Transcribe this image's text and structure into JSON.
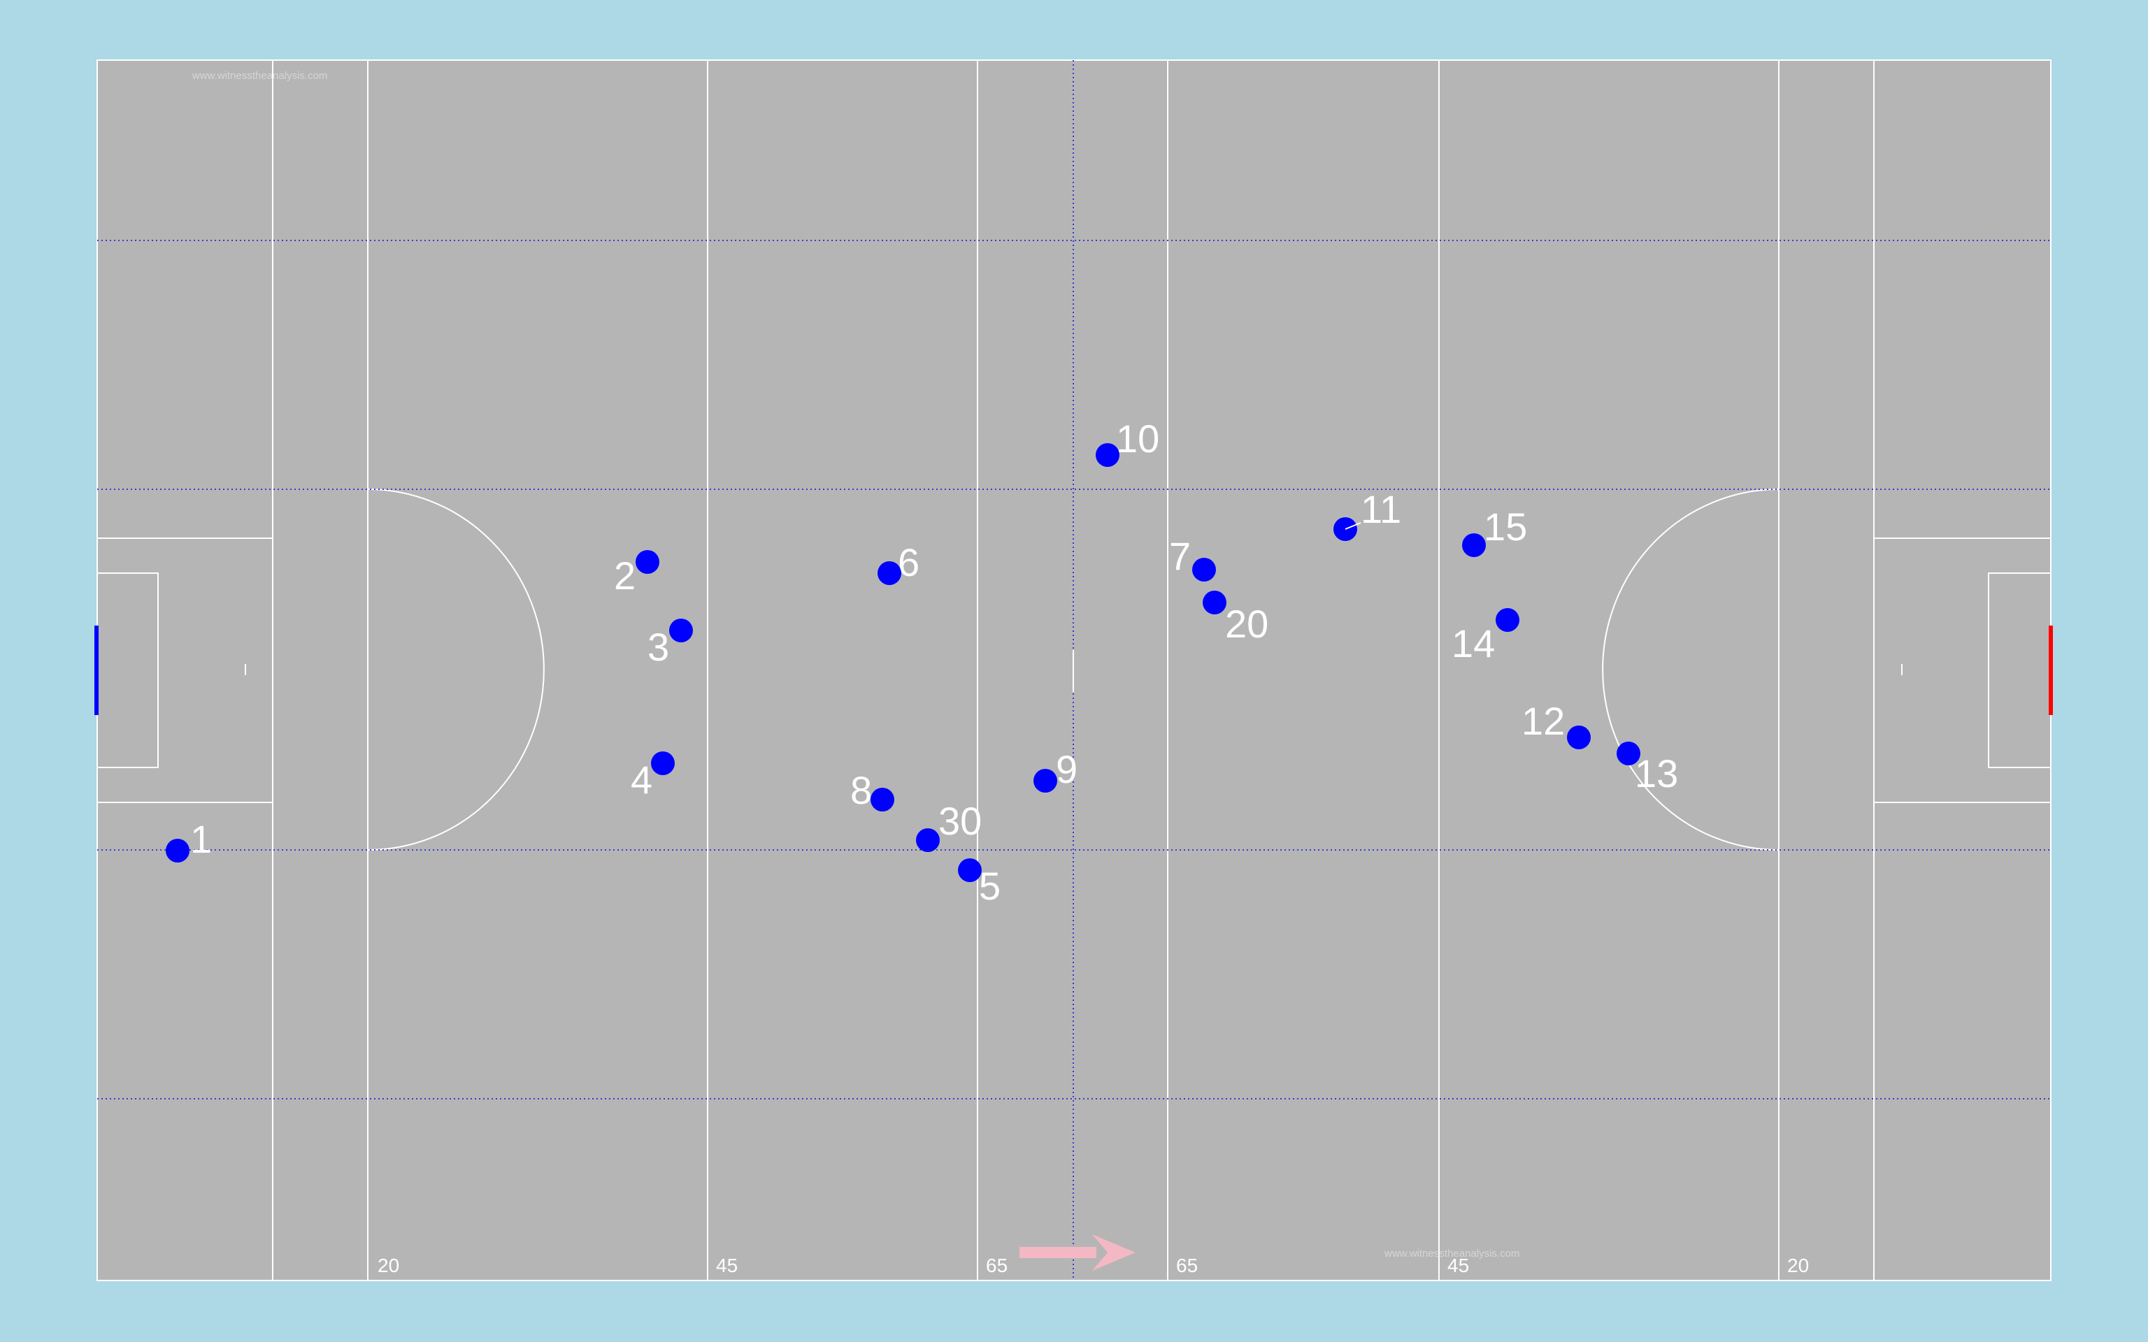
{
  "watermarks": [
    "www.witnesstheanalysis.com",
    "www.witnesstheanalysis.com"
  ],
  "yard_labels": [
    "20",
    "45",
    "65",
    "65",
    "45",
    "20"
  ],
  "colors": {
    "background": "#add8e6",
    "pitch": "#b5b5b5",
    "lines": "#ffffff",
    "dotted_lines": "#3b3bcc",
    "players": "#0000ff",
    "left_goal": "#0000ff",
    "right_goal": "#ff0000",
    "direction_arrow": "#f4b8c4"
  },
  "direction_arrow": {
    "icon": "arrow-right-icon"
  },
  "players": [
    {
      "number": "1"
    },
    {
      "number": "2"
    },
    {
      "number": "3"
    },
    {
      "number": "4"
    },
    {
      "number": "5"
    },
    {
      "number": "6"
    },
    {
      "number": "7"
    },
    {
      "number": "8"
    },
    {
      "number": "9"
    },
    {
      "number": "10"
    },
    {
      "number": "11"
    },
    {
      "number": "12"
    },
    {
      "number": "13"
    },
    {
      "number": "14"
    },
    {
      "number": "15"
    },
    {
      "number": "20"
    },
    {
      "number": "30"
    }
  ]
}
